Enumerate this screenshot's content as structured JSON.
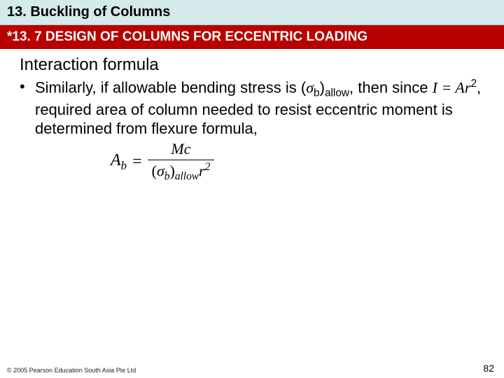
{
  "chapter_title": "13. Buckling of Columns",
  "section_title": "*13. 7 DESIGN OF COLUMNS FOR ECCENTRIC LOADING",
  "heading": "Interaction formula",
  "bullet_pre": "Similarly, if allowable bending stress is (",
  "sigma": "σ",
  "sub_b": "b",
  "paren_close": ")",
  "allow_sub": "allow",
  "bullet_mid1": ", then since ",
  "I_eq": "I = Ar",
  "sup2": "2",
  "bullet_mid2": ", required area of column needed to resist eccentric moment is determined from flexure formula,",
  "formula_lhs": "A",
  "formula_lhs_sub": "b",
  "formula_eq": "=",
  "formula_num": "Mc",
  "formula_den_open": "(",
  "formula_den_sigma": "σ",
  "formula_den_sub1": "b",
  "formula_den_close": ")",
  "formula_den_sub2": "allow",
  "formula_den_r": "r",
  "formula_den_sup": "2",
  "copyright": "© 2005 Pearson Education South Asia Pte Ltd",
  "page": "82",
  "colors": {
    "title_bg": "#d5eaea",
    "section_bg": "#b80000",
    "section_fg": "#ffffff"
  }
}
